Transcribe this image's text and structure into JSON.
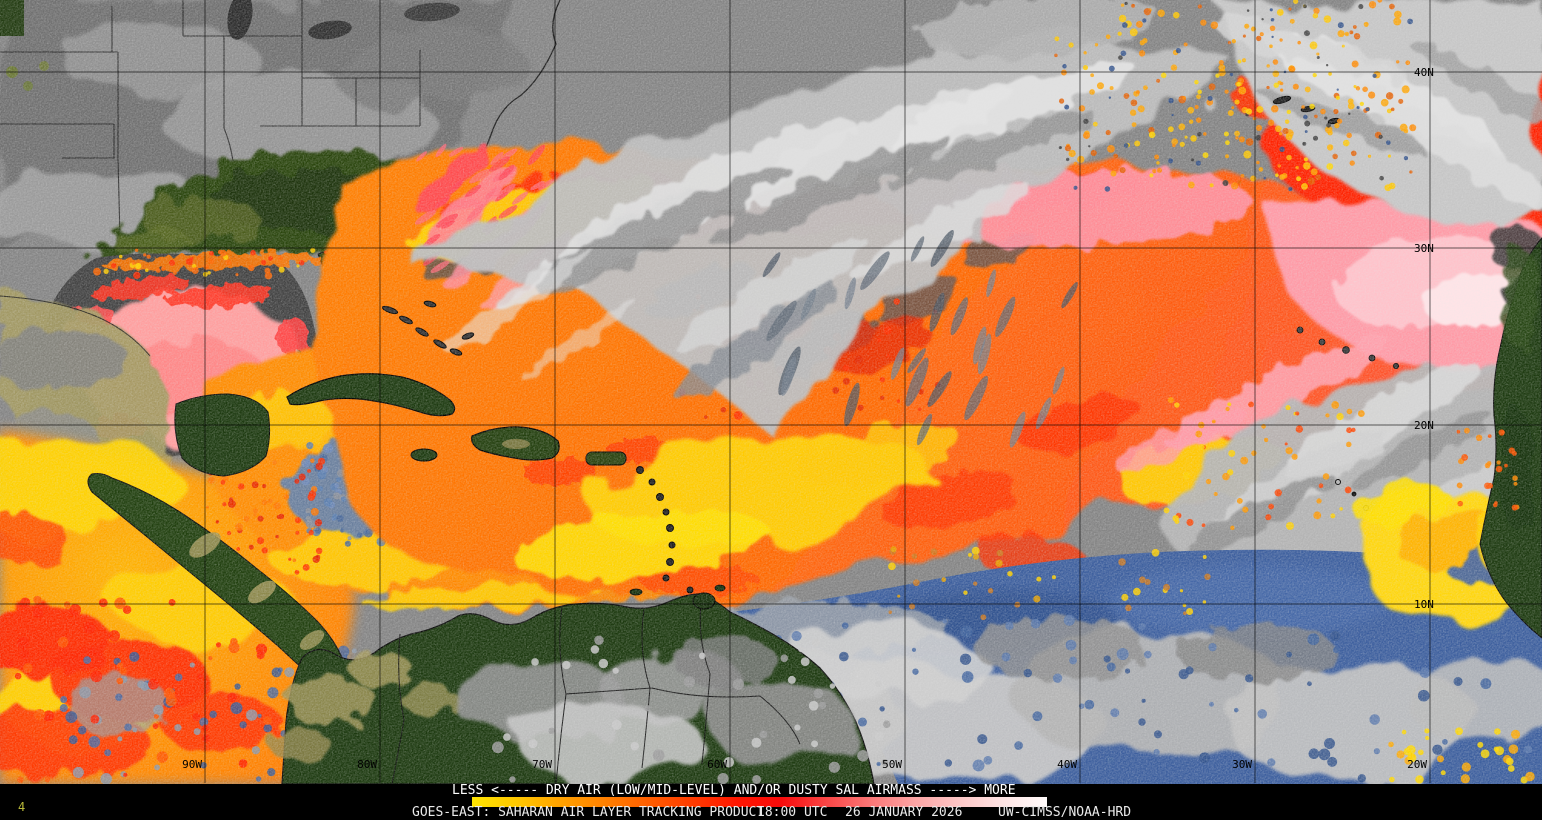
{
  "map": {
    "latitude_labels": [
      "40N",
      "30N",
      "20N",
      "10N"
    ],
    "longitude_labels": [
      "90W",
      "80W",
      "70W",
      "60W",
      "50W",
      "40W",
      "30W",
      "20W"
    ]
  },
  "legend": {
    "scale_caption": "LESS <----- DRY AIR (LOW/MID-LEVEL) AND/OR DUSTY SAL AIRMASS -----> MORE",
    "colorbar_colors": [
      "#ffe400",
      "#ffc800",
      "#ffa200",
      "#ff8000",
      "#ff5e00",
      "#ff3a00",
      "#ff1600",
      "#f80b0b",
      "#f94545",
      "#fb7676",
      "#fca4a4",
      "#fdc6c6",
      "#fee4e4",
      "#fffbfb"
    ],
    "product": "GOES-EAST: SAHARAN AIR LAYER TRACKING PRODUCT",
    "time": "18:00 UTC",
    "date": "26 JANUARY 2026",
    "credit": "UW-CIMSS/NOAA-HRD",
    "corner_mark": "4"
  }
}
